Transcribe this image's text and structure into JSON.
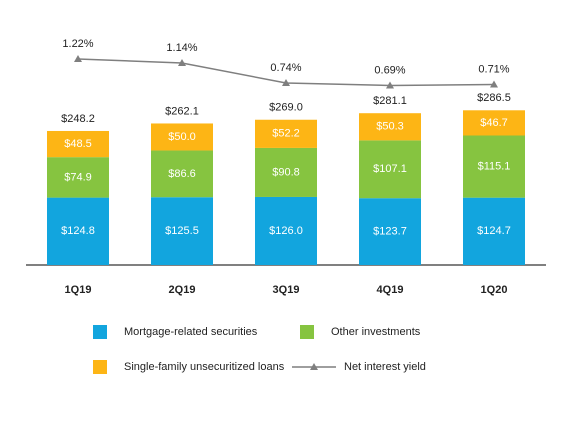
{
  "chart_data": {
    "type": "bar",
    "stacked": true,
    "categories": [
      "1Q19",
      "2Q19",
      "3Q19",
      "4Q19",
      "1Q20"
    ],
    "series": [
      {
        "name": "Mortgage-related securities",
        "color": "#12a5de",
        "values": [
          124.8,
          125.5,
          126.0,
          123.7,
          124.7
        ],
        "value_labels": [
          "$124.8",
          "$125.5",
          "$126.0",
          "$123.7",
          "$124.7"
        ]
      },
      {
        "name": "Other investments",
        "color": "#86c440",
        "values": [
          74.9,
          86.6,
          90.8,
          107.1,
          115.1
        ],
        "value_labels": [
          "$74.9",
          "$86.6",
          "$90.8",
          "$107.1",
          "$115.1"
        ]
      },
      {
        "name": "Single-family unsecuritized loans",
        "color": "#fdb515",
        "values": [
          48.5,
          50.0,
          52.2,
          50.3,
          46.7
        ],
        "value_labels": [
          "$48.5",
          "$50.0",
          "$52.2",
          "$50.3",
          "$46.7"
        ]
      },
      {
        "name": "Net interest yield",
        "type": "line",
        "axis": "y2",
        "color": "#7f7f7f",
        "values": [
          1.22,
          1.14,
          0.74,
          0.69,
          0.71
        ],
        "value_labels": [
          "1.22%",
          "1.14%",
          "0.74%",
          "0.69%",
          "0.71%"
        ]
      }
    ],
    "totals": {
      "values": [
        248.2,
        262.1,
        269.0,
        281.1,
        286.5
      ],
      "value_labels": [
        "$248.2",
        "$262.1",
        "$269.0",
        "$281.1",
        "$286.5"
      ]
    },
    "ylim": [
      0,
      400
    ],
    "y2lim": [
      0.4,
      1.6
    ]
  }
}
